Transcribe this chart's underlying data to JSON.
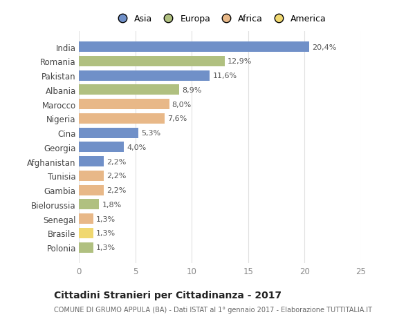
{
  "countries": [
    "India",
    "Romania",
    "Pakistan",
    "Albania",
    "Marocco",
    "Nigeria",
    "Cina",
    "Georgia",
    "Afghanistan",
    "Tunisia",
    "Gambia",
    "Bielorussia",
    "Senegal",
    "Brasile",
    "Polonia"
  ],
  "values": [
    20.4,
    12.9,
    11.6,
    8.9,
    8.0,
    7.6,
    5.3,
    4.0,
    2.2,
    2.2,
    2.2,
    1.8,
    1.3,
    1.3,
    1.3
  ],
  "labels": [
    "20,4%",
    "12,9%",
    "11,6%",
    "8,9%",
    "8,0%",
    "7,6%",
    "5,3%",
    "4,0%",
    "2,2%",
    "2,2%",
    "2,2%",
    "1,8%",
    "1,3%",
    "1,3%",
    "1,3%"
  ],
  "continents": [
    "Asia",
    "Europa",
    "Asia",
    "Europa",
    "Africa",
    "Africa",
    "Asia",
    "Asia",
    "Asia",
    "Africa",
    "Africa",
    "Europa",
    "Africa",
    "America",
    "Europa"
  ],
  "colors": {
    "Asia": "#7090c8",
    "Europa": "#b0c080",
    "Africa": "#e8b888",
    "America": "#f0d870"
  },
  "legend_order": [
    "Asia",
    "Europa",
    "Africa",
    "America"
  ],
  "title": "Cittadini Stranieri per Cittadinanza - 2017",
  "subtitle": "COMUNE DI GRUMO APPULA (BA) - Dati ISTAT al 1° gennaio 2017 - Elaborazione TUTTITALIA.IT",
  "xlim": [
    0,
    25
  ],
  "xticks": [
    0,
    5,
    10,
    15,
    20,
    25
  ],
  "background_color": "#ffffff",
  "grid_color": "#e0e0e0"
}
